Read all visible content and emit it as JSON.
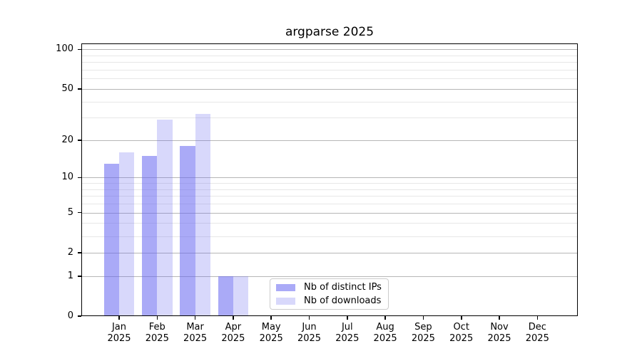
{
  "title": "argparse 2025",
  "chart_data": {
    "type": "bar",
    "title": "argparse 2025",
    "categories": [
      "Jan 2025",
      "Feb 2025",
      "Mar 2025",
      "Apr 2025",
      "May 2025",
      "Jun 2025",
      "Jul 2025",
      "Aug 2025",
      "Sep 2025",
      "Oct 2025",
      "Nov 2025",
      "Dec 2025"
    ],
    "series": [
      {
        "name": "Nb of distinct IPs",
        "color": "rgba(100,100,240,0.55)",
        "values": [
          13,
          15,
          18,
          1,
          0,
          0,
          0,
          0,
          0,
          0,
          0,
          0
        ]
      },
      {
        "name": "Nb of downloads",
        "color": "rgba(100,100,240,0.25)",
        "values": [
          16,
          29,
          32,
          1,
          0,
          0,
          0,
          0,
          0,
          0,
          0,
          0
        ]
      }
    ],
    "xlabel": "",
    "ylabel": "",
    "yscale": "log1p",
    "ylim": [
      0,
      111
    ],
    "y_major_ticks": [
      100,
      50,
      20,
      10,
      5,
      2,
      1,
      0
    ],
    "y_minor_gridlines": [
      3,
      4,
      6,
      7,
      8,
      9,
      30,
      40,
      60,
      70,
      80,
      90
    ],
    "grid": true,
    "legend_position": "lower center",
    "colors": {
      "major_grid": "#b6b6b6",
      "minor_grid": "#e7e7e7",
      "axis": "#000000",
      "background": "#ffffff"
    }
  }
}
